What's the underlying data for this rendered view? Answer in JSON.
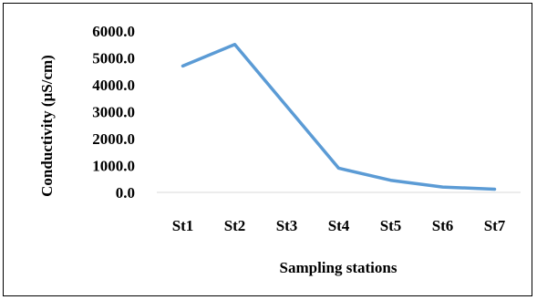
{
  "chart_data": {
    "type": "line",
    "title": "",
    "xlabel": "Sampling stations",
    "ylabel": "Conductivity (µS/cm)",
    "categories": [
      "St1",
      "St2",
      "St3",
      "St4",
      "St5",
      "St6",
      "St7"
    ],
    "series": [
      {
        "values": [
          4700,
          5500,
          3200,
          900,
          450,
          200,
          120
        ],
        "color": "#5b9bd5"
      }
    ],
    "ylim": [
      0,
      6000
    ],
    "yticks": [
      "0.0",
      "1000.0",
      "2000.0",
      "3000.0",
      "4000.0",
      "5000.0",
      "6000.0"
    ],
    "grid": false,
    "legend": "none"
  }
}
